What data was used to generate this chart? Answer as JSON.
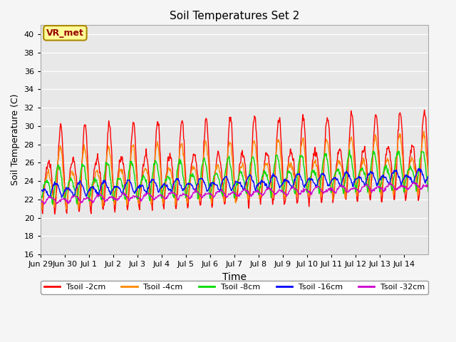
{
  "title": "Soil Temperatures Set 2",
  "xlabel": "Time",
  "ylabel": "Soil Temperature (C)",
  "ylim": [
    16,
    41
  ],
  "yticks": [
    16,
    18,
    20,
    22,
    24,
    26,
    28,
    30,
    32,
    34,
    36,
    38,
    40
  ],
  "background_color": "#e8e8e8",
  "annotation_text": "VR_met",
  "annotation_box_color": "#ffff99",
  "annotation_text_color": "#990000",
  "series_names": [
    "Tsoil -2cm",
    "Tsoil -4cm",
    "Tsoil -8cm",
    "Tsoil -16cm",
    "Tsoil -32cm"
  ],
  "series_colors": [
    "#ff0000",
    "#ff8800",
    "#00dd00",
    "#0000ff",
    "#cc00cc"
  ],
  "series_linewidths": [
    1.0,
    1.0,
    1.0,
    1.0,
    1.0
  ],
  "n_days": 16,
  "tick_labels": [
    "Jun 29",
    "Jun 30",
    "Jul 1",
    "Jul 2",
    "Jul 3",
    "Jul 4",
    "Jul 5",
    "Jul 6",
    "Jul 7",
    "Jul 8",
    "Jul 9",
    "Jul 10",
    "Jul 11",
    "Jul 12",
    "Jul 13",
    "Jul 14"
  ],
  "depths_params": {
    "Tsoil -2cm": {
      "base": 20.5,
      "amp": 9.5,
      "phase_lag": 0.0,
      "noise": 0.25
    },
    "Tsoil -4cm": {
      "base": 21.0,
      "amp": 6.5,
      "phase_lag": 0.5,
      "noise": 0.2
    },
    "Tsoil -8cm": {
      "base": 21.5,
      "amp": 4.2,
      "phase_lag": 2.0,
      "noise": 0.15
    },
    "Tsoil -16cm": {
      "base": 22.2,
      "amp": 1.5,
      "phase_lag": 5.0,
      "noise": 0.1
    },
    "Tsoil -32cm": {
      "base": 21.5,
      "amp": 0.75,
      "phase_lag": 10.0,
      "noise": 0.08
    }
  }
}
